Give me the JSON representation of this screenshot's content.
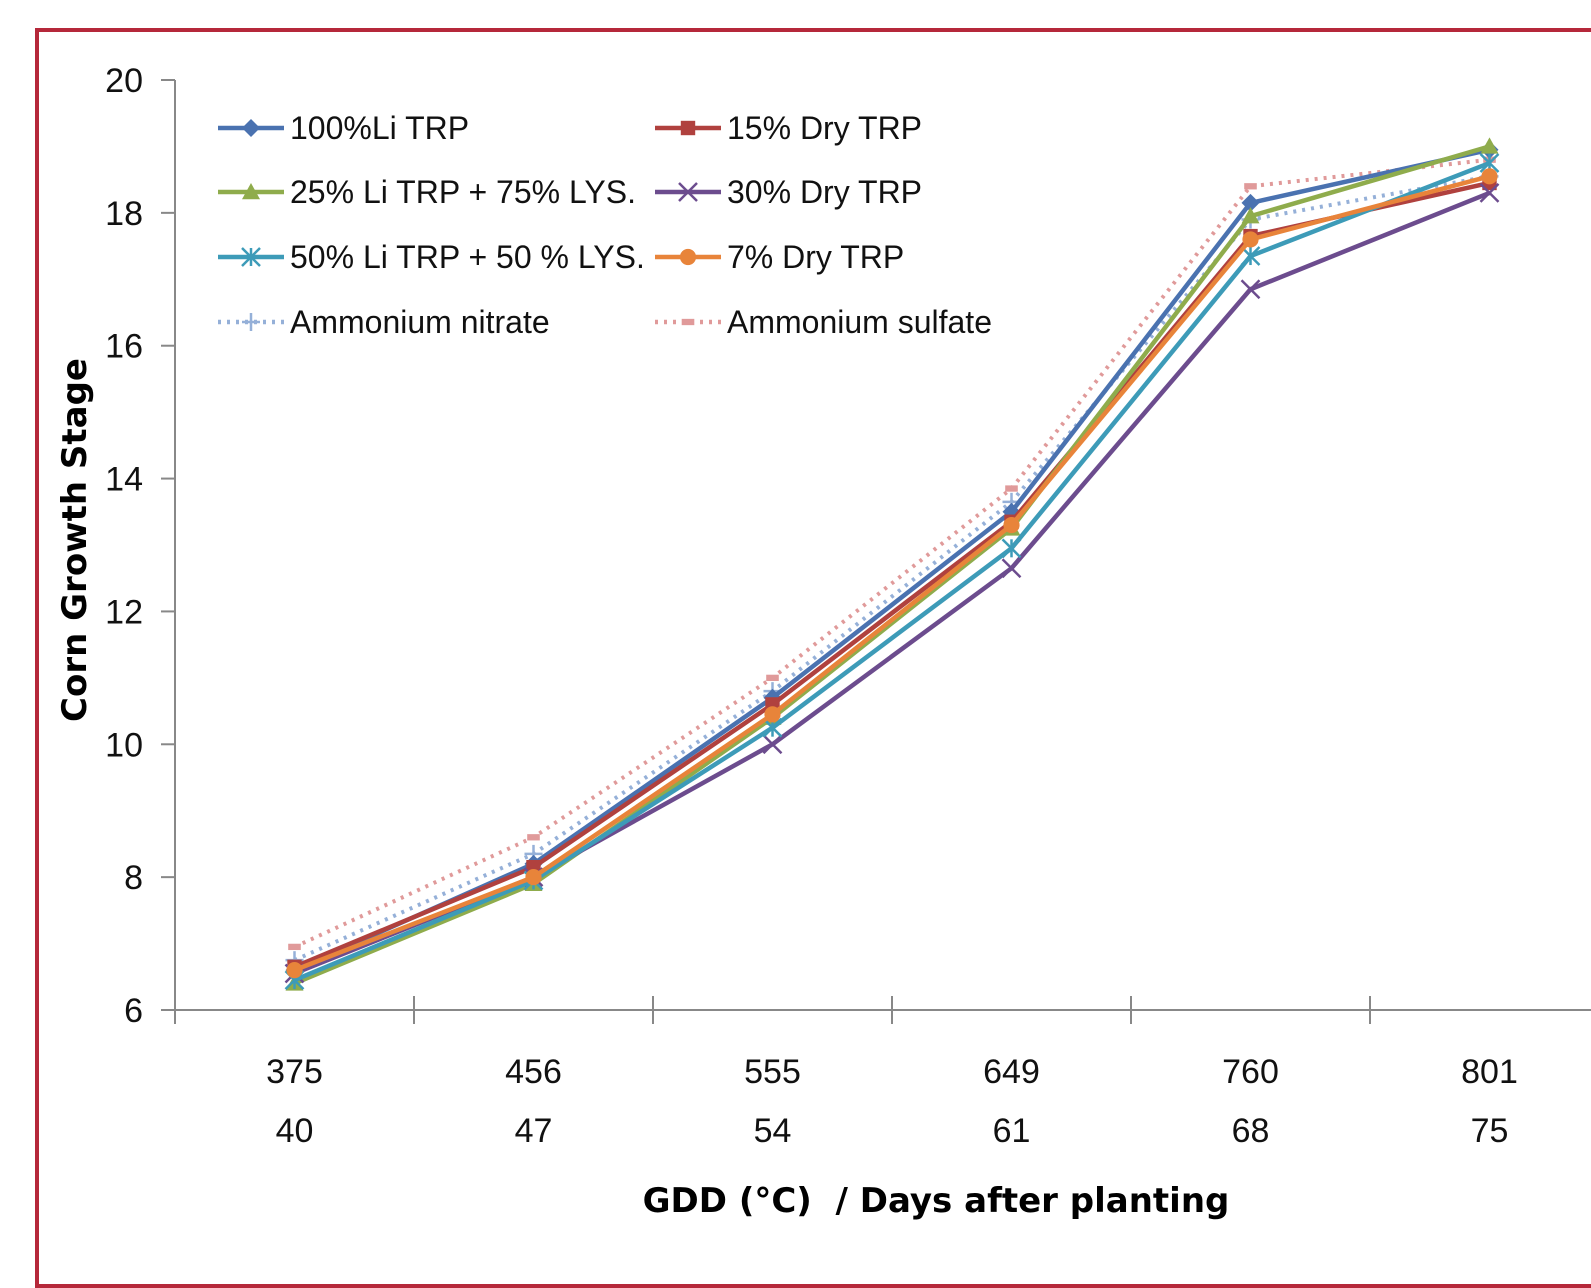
{
  "chart_data": {
    "type": "line",
    "xlabel": "GDD (°C)  / Days after planting",
    "ylabel": "Corn Growth Stage",
    "ylim": [
      6,
      20
    ],
    "yticks": [
      6,
      8,
      10,
      12,
      14,
      16,
      18,
      20
    ],
    "categories": [
      {
        "gdd": "375",
        "days": "40"
      },
      {
        "gdd": "456",
        "days": "47"
      },
      {
        "gdd": "555",
        "days": "54"
      },
      {
        "gdd": "649",
        "days": "61"
      },
      {
        "gdd": "760",
        "days": "68"
      },
      {
        "gdd": "801",
        "days": "75"
      }
    ],
    "legend_position": "top-left",
    "grid": false,
    "series": [
      {
        "name": "100%Li TRP",
        "values": [
          6.6,
          8.2,
          10.7,
          13.5,
          18.15,
          18.95
        ],
        "color": "#4a72b0",
        "marker": "diamond",
        "dash": false
      },
      {
        "name": "15% Dry TRP",
        "values": [
          6.65,
          8.15,
          10.6,
          13.35,
          17.65,
          18.45
        ],
        "color": "#b0413e",
        "marker": "square",
        "dash": false
      },
      {
        "name": "25% Li TRP + 75% LYS.",
        "values": [
          6.4,
          7.9,
          10.4,
          13.25,
          17.95,
          19.0
        ],
        "color": "#8fac4c",
        "marker": "triangle",
        "dash": false
      },
      {
        "name": "30% Dry TRP",
        "values": [
          6.55,
          8.0,
          10.0,
          12.65,
          16.85,
          18.3
        ],
        "color": "#6c4c8e",
        "marker": "x",
        "dash": false
      },
      {
        "name": "50% Li TRP + 50 % LYS.",
        "values": [
          6.45,
          7.95,
          10.25,
          12.95,
          17.35,
          18.75
        ],
        "color": "#3d9bb8",
        "marker": "star",
        "dash": false
      },
      {
        "name": "7% Dry TRP",
        "values": [
          6.6,
          8.0,
          10.45,
          13.3,
          17.6,
          18.55
        ],
        "color": "#e8843a",
        "marker": "circle",
        "dash": false
      },
      {
        "name": "Ammonium nitrate",
        "values": [
          6.75,
          8.35,
          10.8,
          13.65,
          17.9,
          18.55
        ],
        "color": "#95b0d8",
        "marker": "plus",
        "dash": true
      },
      {
        "name": "Ammonium sulfate",
        "values": [
          6.95,
          8.6,
          11.0,
          13.85,
          18.4,
          18.8
        ],
        "color": "#e09a9a",
        "marker": "dash",
        "dash": true
      }
    ]
  }
}
